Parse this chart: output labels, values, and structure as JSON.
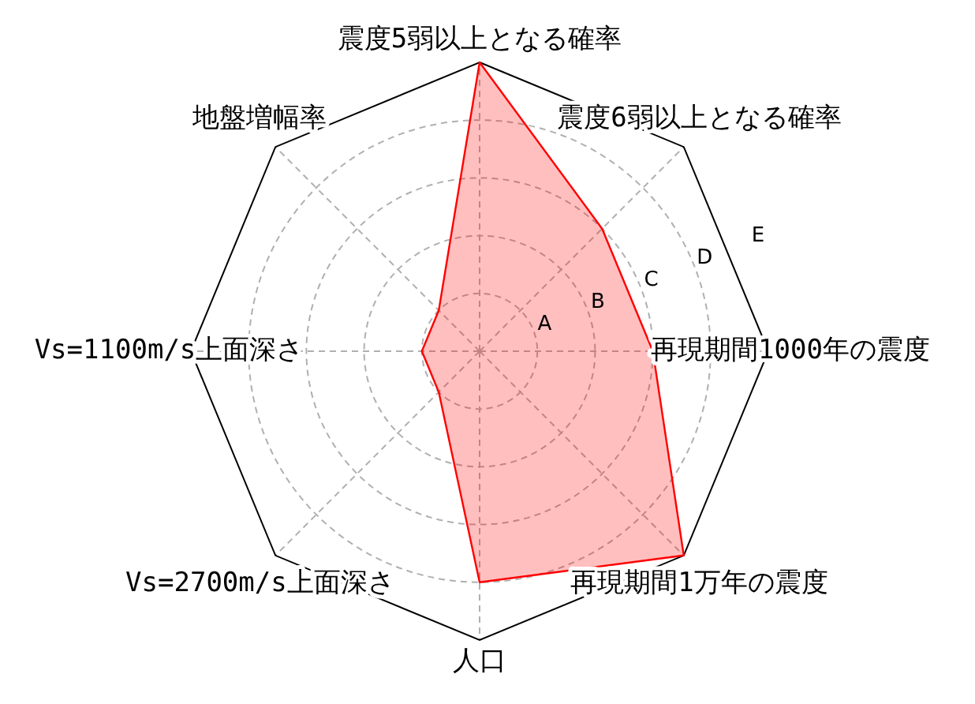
{
  "chart_data": {
    "type": "radar",
    "categories": [
      "震度5弱以上となる確率",
      "震度6弱以上となる確率",
      "再現期間1000年の震度",
      "再現期間1万年の震度",
      "人口",
      "Vs=2700m/s上面深さ",
      "Vs=1100m/s上面深さ",
      "地盤増幅率"
    ],
    "series": [
      {
        "color": "#ff0000",
        "values": [
          5,
          3,
          3,
          5,
          4,
          1,
          1,
          1
        ]
      }
    ],
    "ylim": [
      0,
      5
    ],
    "yticks": [
      {
        "value": 1,
        "label": "A"
      },
      {
        "value": 2,
        "label": "B"
      },
      {
        "value": 3,
        "label": "C"
      },
      {
        "value": 4,
        "label": "D"
      },
      {
        "value": 5,
        "label": "E"
      }
    ],
    "grid": true
  }
}
